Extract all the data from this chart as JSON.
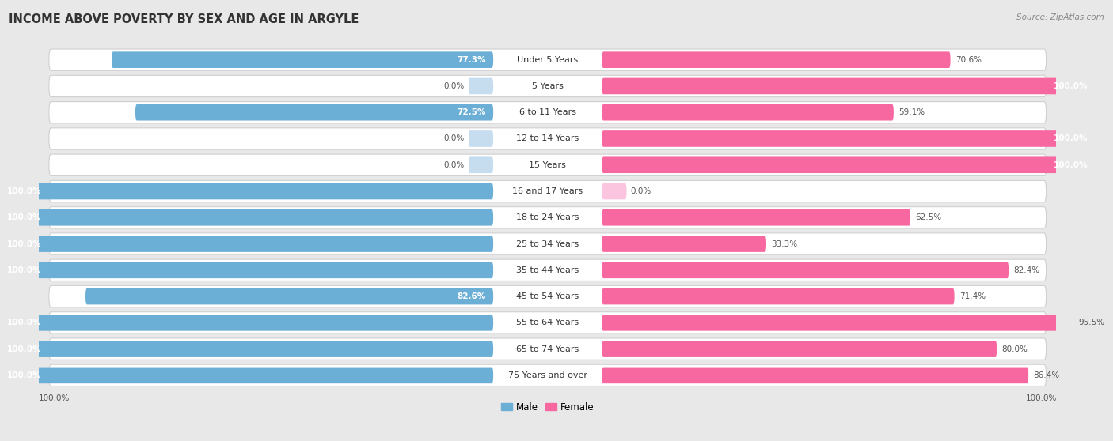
{
  "title": "INCOME ABOVE POVERTY BY SEX AND AGE IN ARGYLE",
  "source": "Source: ZipAtlas.com",
  "categories": [
    "Under 5 Years",
    "5 Years",
    "6 to 11 Years",
    "12 to 14 Years",
    "15 Years",
    "16 and 17 Years",
    "18 to 24 Years",
    "25 to 34 Years",
    "35 to 44 Years",
    "45 to 54 Years",
    "55 to 64 Years",
    "65 to 74 Years",
    "75 Years and over"
  ],
  "male_values": [
    77.3,
    0.0,
    72.5,
    0.0,
    0.0,
    100.0,
    100.0,
    100.0,
    100.0,
    82.6,
    100.0,
    100.0,
    100.0
  ],
  "female_values": [
    70.6,
    100.0,
    59.1,
    100.0,
    100.0,
    0.0,
    62.5,
    33.3,
    82.4,
    71.4,
    95.5,
    80.0,
    86.4
  ],
  "male_color": "#6baed6",
  "male_color_light": "#c6dcef",
  "female_color": "#f768a1",
  "female_color_light": "#fcc5df",
  "male_label": "Male",
  "female_label": "Female",
  "axis_max": 100.0,
  "background_color": "#e8e8e8",
  "bar_bg_color": "#ffffff",
  "bar_bg_border": "#d0d0d0",
  "title_fontsize": 10.5,
  "label_fontsize": 8,
  "value_fontsize": 7.5,
  "legend_fontsize": 8.5,
  "footer_fontsize": 7.5,
  "zero_stub": 5.0
}
